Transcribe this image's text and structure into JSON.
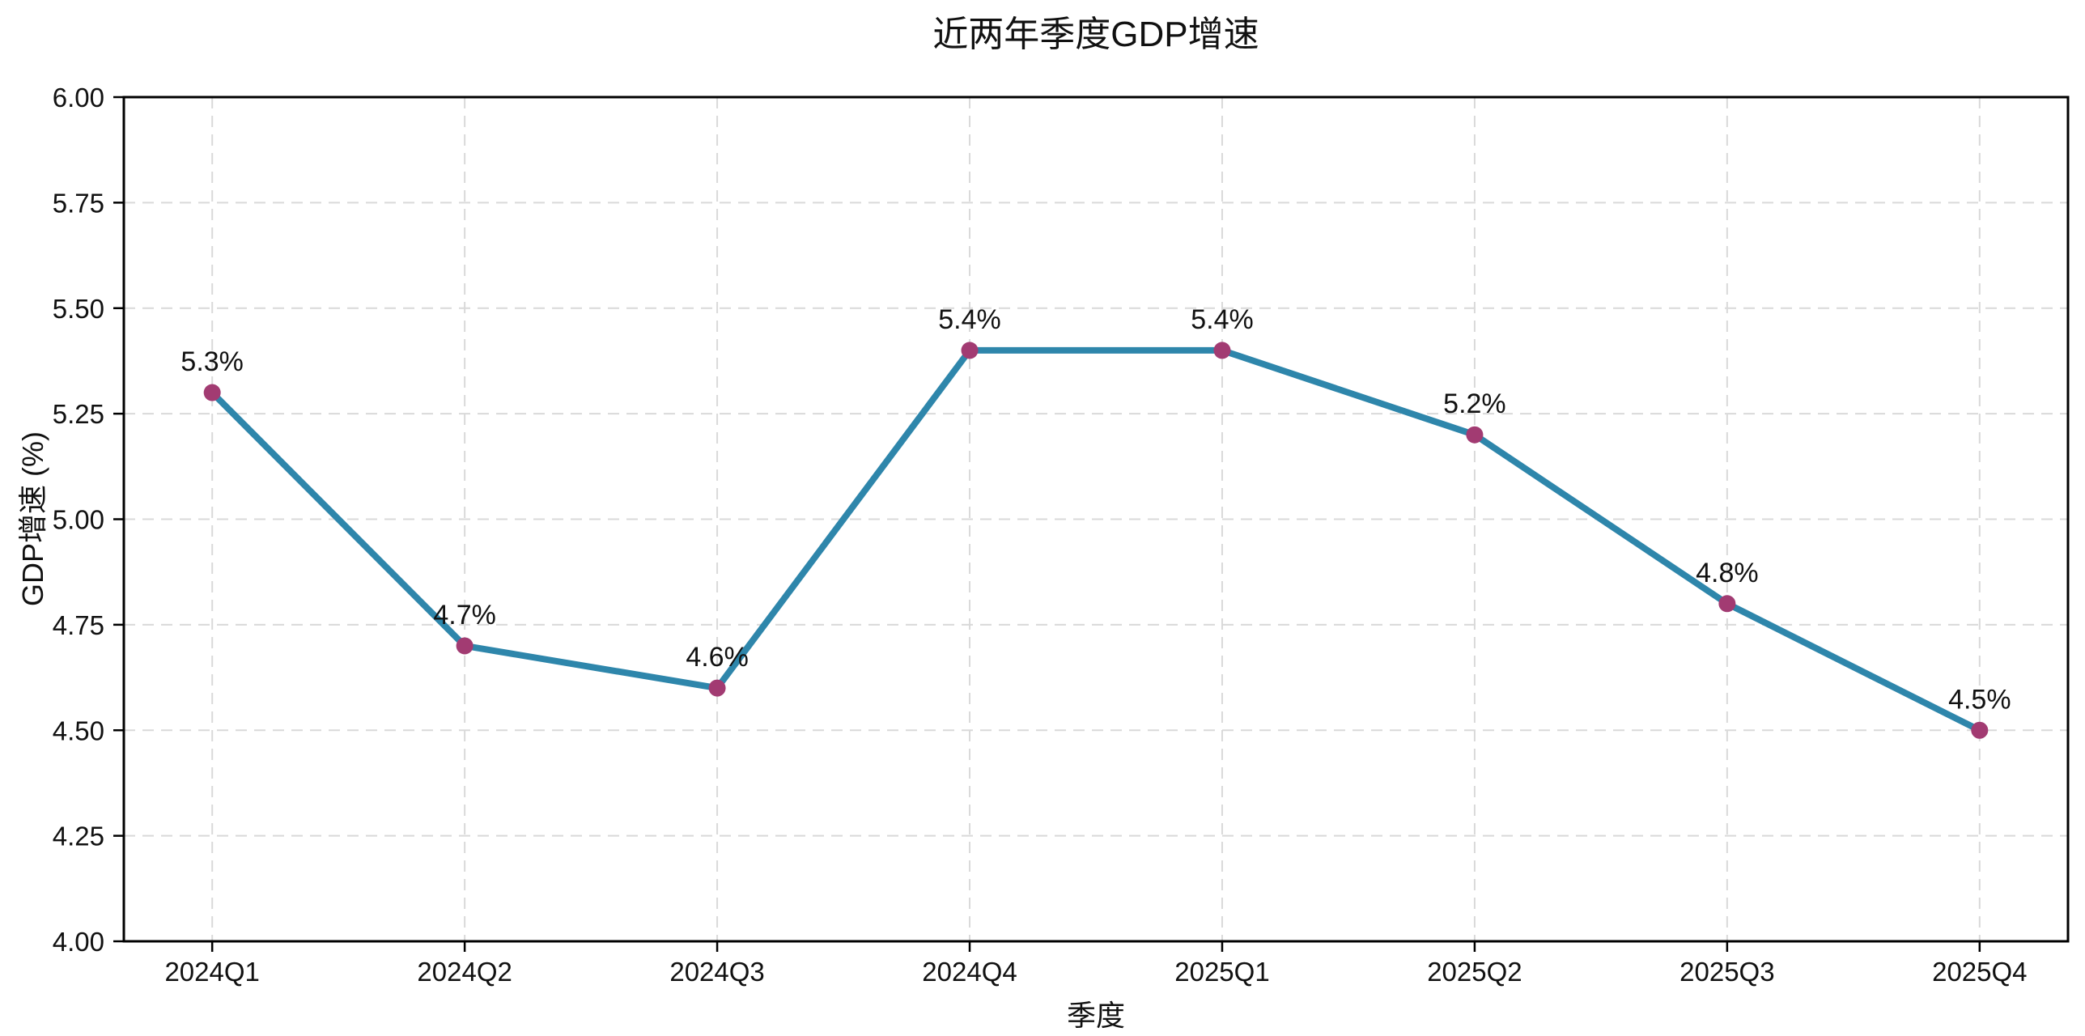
{
  "chart_data": {
    "type": "line",
    "title": "近两年季度GDP增速",
    "xlabel": "季度",
    "ylabel": "GDP增速 (%)",
    "categories": [
      "2024Q1",
      "2024Q2",
      "2024Q3",
      "2024Q4",
      "2025Q1",
      "2025Q2",
      "2025Q3",
      "2025Q4"
    ],
    "series": [
      {
        "name": "GDP增速",
        "values": [
          5.3,
          4.7,
          4.6,
          5.4,
          5.4,
          5.2,
          4.8,
          4.5
        ],
        "point_labels": [
          "5.3%",
          "4.7%",
          "4.6%",
          "5.4%",
          "5.4%",
          "5.2%",
          "4.8%",
          "4.5%"
        ]
      }
    ],
    "ylim": [
      4.0,
      6.0
    ],
    "ytick_values": [
      4.0,
      4.25,
      4.5,
      4.75,
      5.0,
      5.25,
      5.5,
      5.75,
      6.0
    ],
    "ytick_labels": [
      "4.00",
      "4.25",
      "4.50",
      "4.75",
      "5.00",
      "5.25",
      "5.50",
      "5.75",
      "6.00"
    ],
    "grid": true,
    "grid_style": "dashed",
    "legend": "none",
    "colors": {
      "line": "#2E86AB",
      "marker": "#A23B72",
      "grid": "#d9d9d9",
      "spine": "#000000",
      "text": "#111111",
      "background": "#ffffff"
    }
  }
}
